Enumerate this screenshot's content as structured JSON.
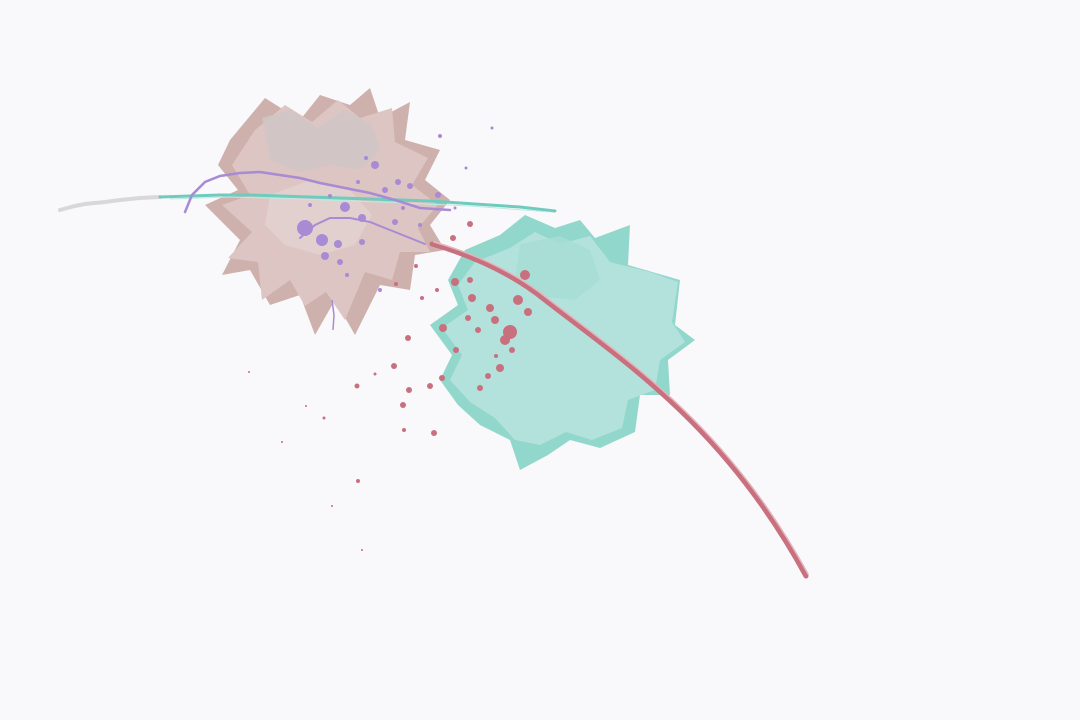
{
  "scene": {
    "background": "#f9f9fb",
    "elements": [
      {
        "name": "spiky-blob-pink",
        "kind": "spiky-shape",
        "colors": [
          "#cfc5c6",
          "#dcc5c2",
          "#c9a8a4"
        ]
      },
      {
        "name": "spiky-blob-teal",
        "kind": "spiky-shape",
        "colors": [
          "#b3e2dc",
          "#86d3c6",
          "#a6ddd5"
        ]
      },
      {
        "name": "purple-scribble-lines",
        "kind": "strokes",
        "colors": [
          "#a98ad4"
        ]
      },
      {
        "name": "teal-scribble-line",
        "kind": "stroke",
        "colors": [
          "#6fcbbd"
        ]
      },
      {
        "name": "red-curved-stroke",
        "kind": "stroke",
        "colors": [
          "#c9707f",
          "#e3b5bd"
        ]
      },
      {
        "name": "purple-dot-splatter",
        "kind": "particles",
        "colors": [
          "#a98ad4"
        ]
      },
      {
        "name": "red-dot-splatter",
        "kind": "particles",
        "colors": [
          "#c9707f"
        ]
      }
    ]
  }
}
